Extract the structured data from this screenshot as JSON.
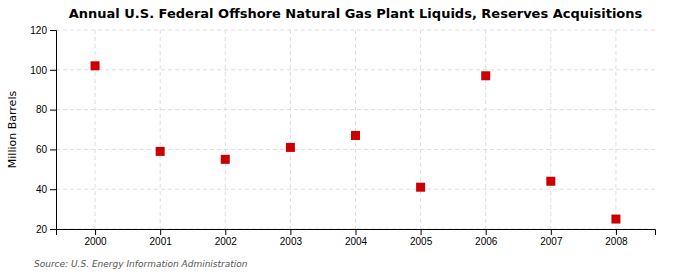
{
  "chart_data": {
    "type": "scatter",
    "title": "Annual U.S. Federal Offshore Natural Gas Plant Liquids, Reserves Acquisitions",
    "ylabel": "Million Barrels",
    "annotation": "Source: U.S. Energy Information Administration",
    "x": [
      2000,
      2001,
      2002,
      2003,
      2004,
      2005,
      2006,
      2007,
      2008
    ],
    "values": [
      102,
      59,
      55,
      61,
      67,
      41,
      97,
      44,
      25
    ],
    "color": "#cc0000",
    "marker": "square",
    "xlim": [
      1999.4,
      2008.6
    ],
    "xticks": [
      2000,
      2001,
      2002,
      2003,
      2004,
      2005,
      2006,
      2007,
      2008
    ],
    "ylim": [
      20,
      120
    ],
    "yticks": [
      20,
      40,
      60,
      80,
      100,
      120
    ],
    "grid": true
  }
}
